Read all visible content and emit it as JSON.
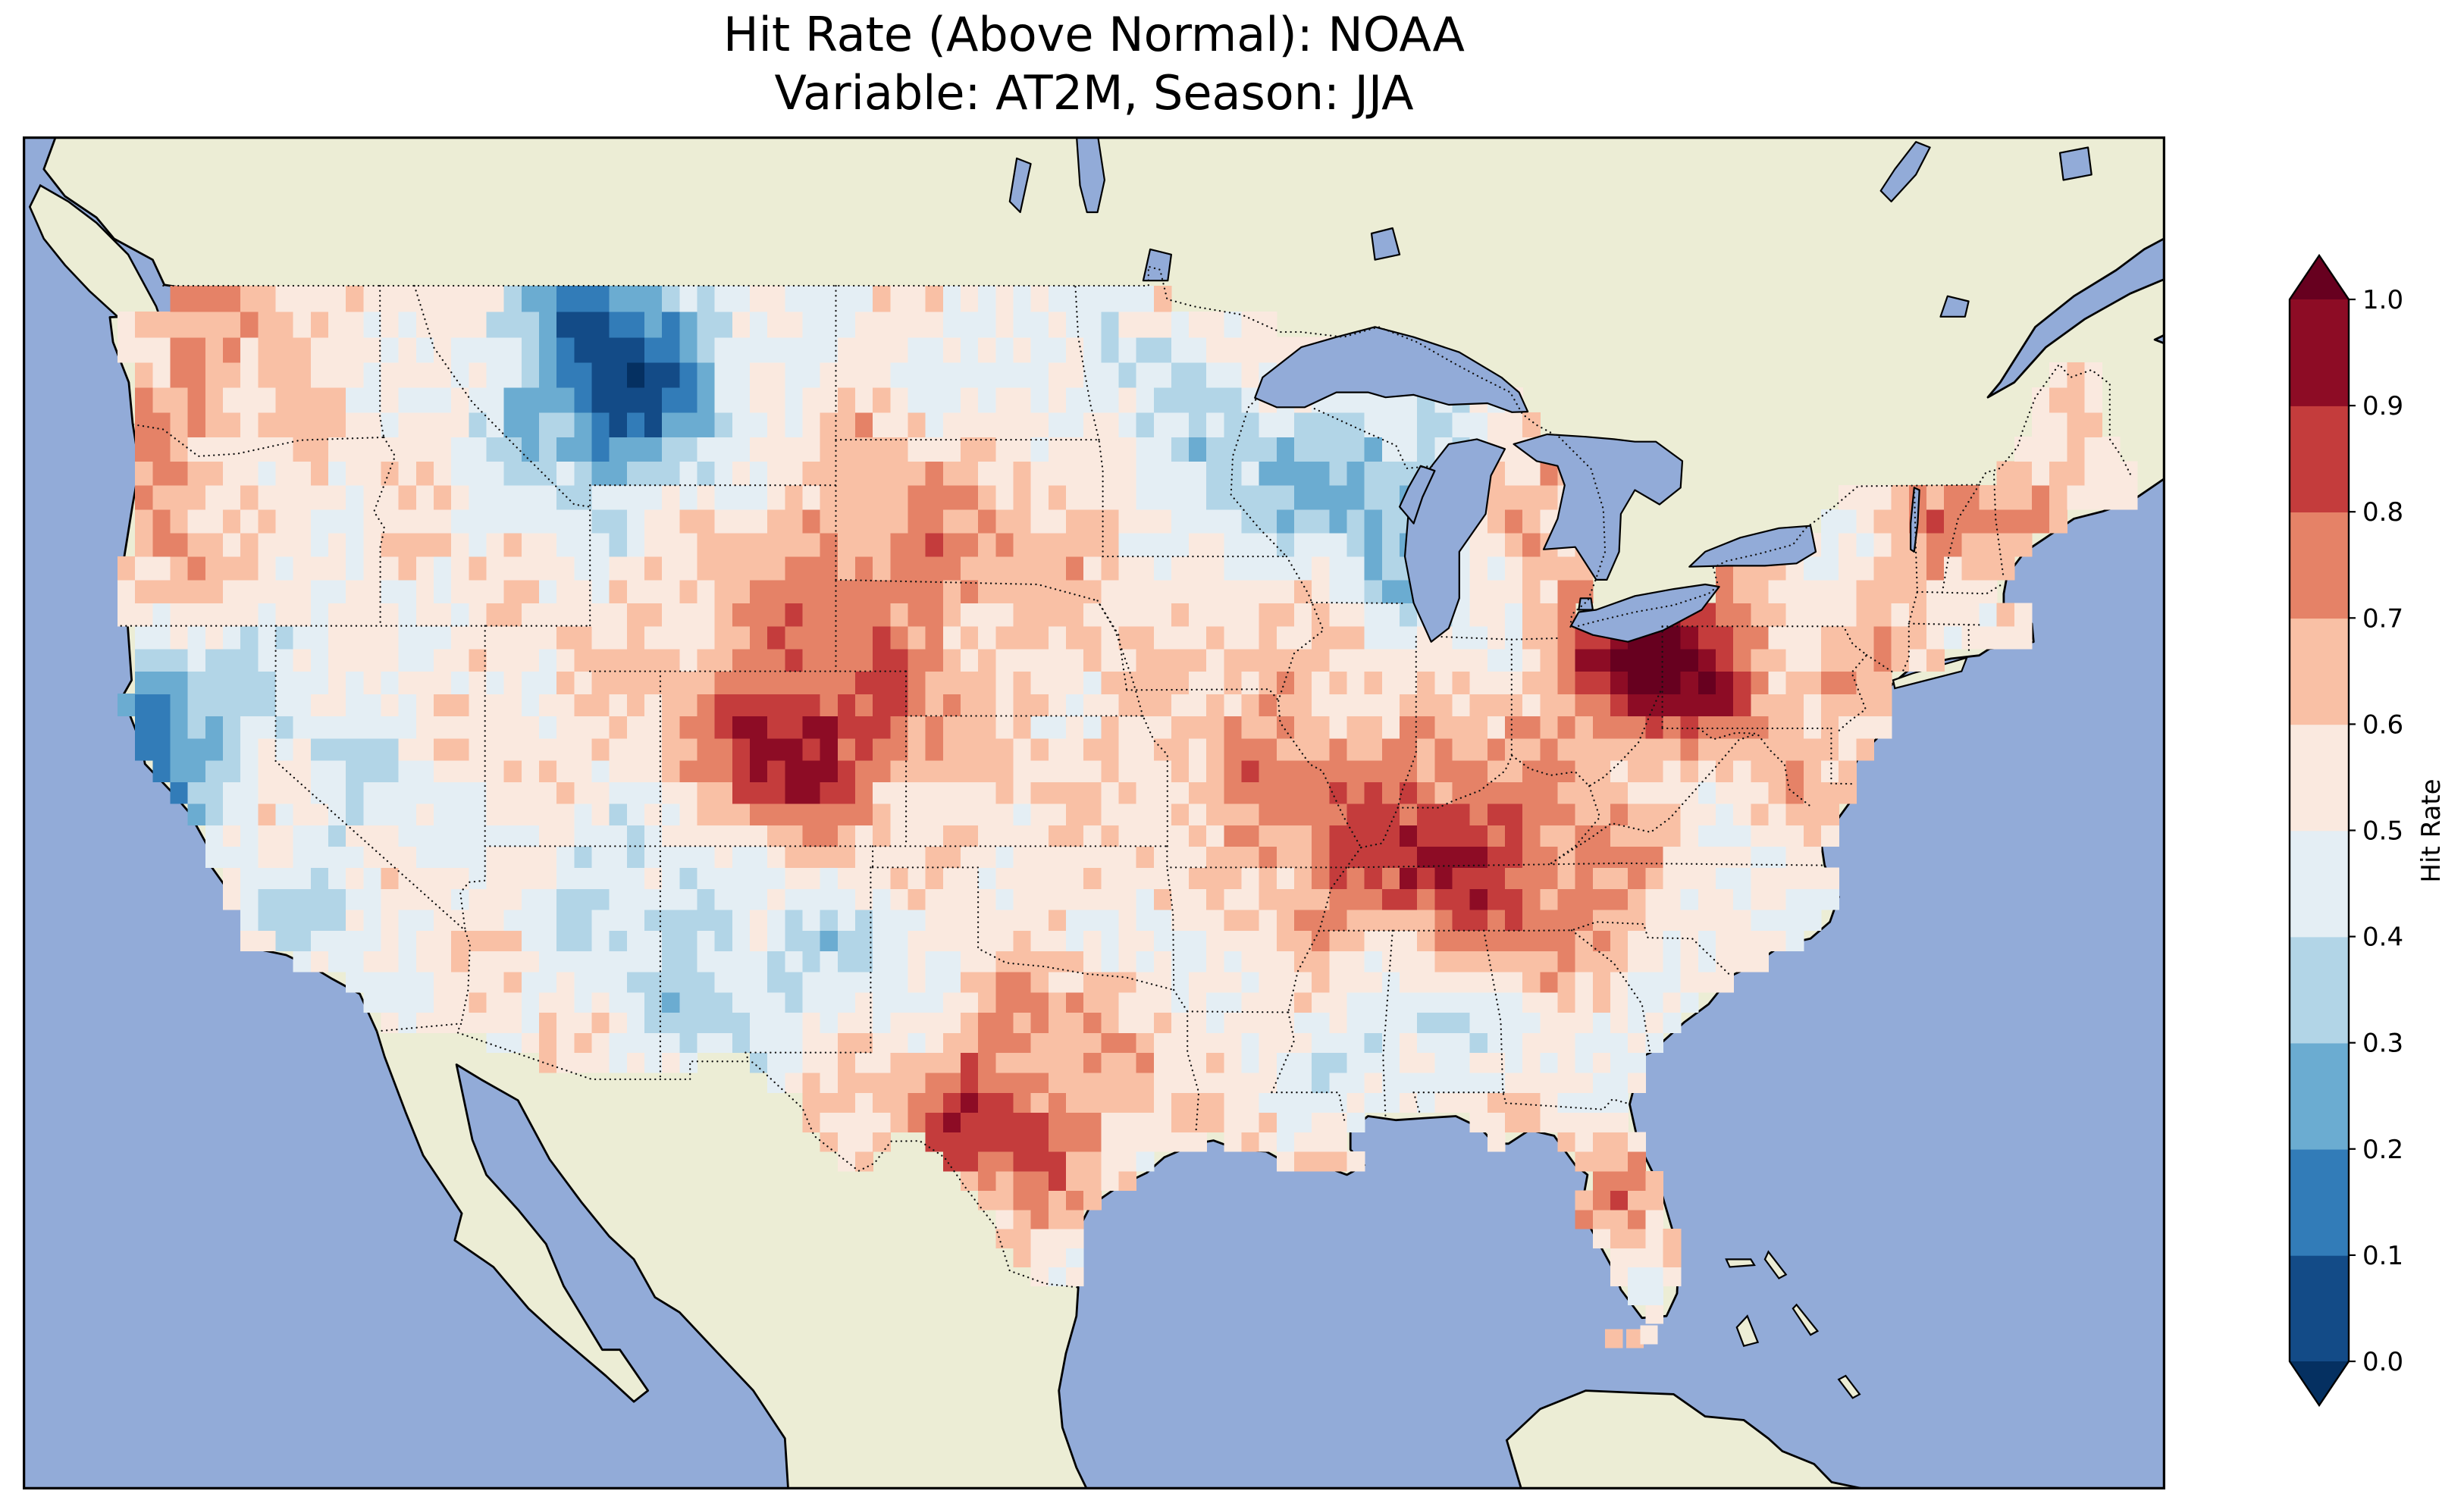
{
  "figure": {
    "title_line1": "Hit Rate (Above Normal): NOAA",
    "title_line2": "Variable: AT2M, Season: JJA"
  },
  "colorbar": {
    "label": "Hit Rate",
    "ticks": [
      "1.0",
      "0.9",
      "0.8",
      "0.7",
      "0.6",
      "0.5",
      "0.4",
      "0.3",
      "0.2",
      "0.1",
      "0.0"
    ],
    "band_colors_low_to_high": [
      "#134b87",
      "#327cb8",
      "#6bacd1",
      "#b2d5e7",
      "#e4eef4",
      "#fae9df",
      "#f9c0a5",
      "#e58267",
      "#c43c3c",
      "#8d0c25"
    ],
    "under_color": "#053061",
    "over_color": "#67001f"
  },
  "map": {
    "projection": "Mercator",
    "ocean_color": "#92abd8",
    "land_color": "#ecedd5",
    "coast_color": "#000000",
    "border_color": "#111111",
    "extent": {
      "lon_min": -127.2,
      "lon_max": -66.2,
      "lat_min": 20.5,
      "lat_max": 51.8
    }
  },
  "chart_data": {
    "type": "heatmap",
    "title": "Hit Rate (Above Normal): NOAA",
    "subtitle": "Variable: AT2M, Season: JJA",
    "source": "NOAA",
    "variable": "AT2M",
    "season": "JJA",
    "metric": "Hit Rate (Above Normal)",
    "legend_label": "Hit Rate",
    "colormap": "RdBu_r",
    "value_range": [
      0.0,
      1.0
    ],
    "bin_size": 0.1,
    "grid": {
      "lon_min": -125.0,
      "lon_max": -66.5,
      "lat_min": 24.5,
      "lat_max": 49.5,
      "cell_size_deg": 0.5
    },
    "baseline_value": 0.55,
    "noise_amplitude": 0.07,
    "blobs": [
      {
        "region": "Central Montana low",
        "lon": -110.3,
        "lat": 47.2,
        "amp": -0.42,
        "sigma": 1.9
      },
      {
        "region": "Central Montana core",
        "lon": -110.6,
        "lat": 47.3,
        "amp": -0.12,
        "sigma": 0.9
      },
      {
        "region": "Northern California coast low",
        "lon": -123.4,
        "lat": 39.9,
        "amp": -0.38,
        "sigma": 1.1
      },
      {
        "region": "San Francisco Bay coast low",
        "lon": -122.7,
        "lat": 38.2,
        "amp": -0.18,
        "sigma": 1.0
      },
      {
        "region": "SW Washington / NW Oregon coast high",
        "lon": -123.2,
        "lat": 46.2,
        "amp": 0.17,
        "sigma": 1.2
      },
      {
        "region": "Northern Washington high",
        "lon": -121.0,
        "lat": 48.9,
        "amp": 0.15,
        "sigma": 1.0
      },
      {
        "region": "SW Oregon high",
        "lon": -122.9,
        "lat": 42.9,
        "amp": 0.12,
        "sigma": 1.0
      },
      {
        "region": "NE California / NW Nevada low",
        "lon": -120.3,
        "lat": 41.3,
        "amp": -0.12,
        "sigma": 1.1
      },
      {
        "region": "Central Nevada low",
        "lon": -117.4,
        "lat": 38.6,
        "amp": -0.12,
        "sigma": 1.4
      },
      {
        "region": "Southern Sierra / S California low",
        "lon": -118.8,
        "lat": 35.3,
        "amp": -0.13,
        "sigma": 1.1
      },
      {
        "region": "Colorado Rockies core high",
        "lon": -105.3,
        "lat": 39.2,
        "amp": 0.27,
        "sigma": 1.15
      },
      {
        "region": "Colorado / High Plains high",
        "lon": -105.0,
        "lat": 40.2,
        "amp": 0.16,
        "sigma": 2.6
      },
      {
        "region": "W Nebraska / SW South Dakota high",
        "lon": -102.2,
        "lat": 43.4,
        "amp": 0.14,
        "sigma": 1.9
      },
      {
        "region": "Four Corners / NE Arizona low",
        "lon": -110.1,
        "lat": 36.4,
        "amp": -0.15,
        "sigma": 1.5
      },
      {
        "region": "SW New Mexico low",
        "lon": -107.1,
        "lat": 33.7,
        "amp": -0.2,
        "sigma": 1.6
      },
      {
        "region": "E New Mexico / TX Panhandle low",
        "lon": -102.8,
        "lat": 34.6,
        "amp": -0.16,
        "sigma": 1.4
      },
      {
        "region": "West Texas low",
        "lon": -101.9,
        "lat": 32.2,
        "amp": -0.13,
        "sigma": 0.9
      },
      {
        "region": "Central and South Texas high",
        "lon": -100.2,
        "lat": 31.0,
        "amp": 0.22,
        "sigma": 2.3
      },
      {
        "region": "South Texas core",
        "lon": -99.3,
        "lat": 29.8,
        "amp": 0.1,
        "sigma": 1.3
      },
      {
        "region": "West-central Minnesota low",
        "lon": -95.4,
        "lat": 46.7,
        "amp": -0.14,
        "sigma": 1.2
      },
      {
        "region": "SE Minnesota / W Wisconsin low",
        "lon": -92.4,
        "lat": 44.9,
        "amp": -0.18,
        "sigma": 1.4
      },
      {
        "region": "Upper Michigan low",
        "lon": -88.6,
        "lat": 45.7,
        "amp": -0.18,
        "sigma": 1.3
      },
      {
        "region": "Lake Michigan shore low",
        "lon": -87.4,
        "lat": 43.7,
        "amp": -0.22,
        "sigma": 1.5
      },
      {
        "region": "NE Iowa / NW Illinois high",
        "lon": -91.5,
        "lat": 41.8,
        "amp": 0.1,
        "sigma": 1.1
      },
      {
        "region": "Central Missouri high",
        "lon": -91.5,
        "lat": 38.5,
        "amp": 0.12,
        "sigma": 1.6
      },
      {
        "region": "W Tennessee / W Kentucky high",
        "lon": -88.4,
        "lat": 36.3,
        "amp": 0.2,
        "sigma": 2.1
      },
      {
        "region": "Kentucky-Tennessee core high",
        "lon": -86.5,
        "lat": 37.4,
        "amp": 0.14,
        "sigma": 1.2
      },
      {
        "region": "E Tennessee high",
        "lon": -84.6,
        "lat": 35.9,
        "amp": 0.1,
        "sigma": 1.5
      },
      {
        "region": "Central Mississippi low",
        "lon": -89.3,
        "lat": 32.7,
        "amp": -0.13,
        "sigma": 1.3
      },
      {
        "region": "Central Alabama low",
        "lon": -86.8,
        "lat": 32.9,
        "amp": -0.12,
        "sigma": 1.2
      },
      {
        "region": "NE Ohio / NW Pennsylvania core very high",
        "lon": -80.7,
        "lat": 41.2,
        "amp": 0.4,
        "sigma": 1.25
      },
      {
        "region": "Ohio Valley broad high",
        "lon": -80.2,
        "lat": 41.0,
        "amp": 0.15,
        "sigma": 2.4
      },
      {
        "region": "Vermont / New Hampshire high",
        "lon": -72.4,
        "lat": 44.0,
        "amp": 0.17,
        "sigma": 1.1
      },
      {
        "region": "Central Maine high",
        "lon": -69.6,
        "lat": 45.2,
        "amp": 0.1,
        "sigma": 0.9
      },
      {
        "region": "Central New York low",
        "lon": -76.2,
        "lat": 43.0,
        "amp": -0.09,
        "sigma": 1.0
      },
      {
        "region": "NYC / New Jersey high",
        "lon": -74.5,
        "lat": 40.6,
        "amp": 0.12,
        "sigma": 0.9
      },
      {
        "region": "W North Carolina high",
        "lon": -82.6,
        "lat": 35.5,
        "amp": 0.12,
        "sigma": 1.3
      },
      {
        "region": "E North Carolina coast low",
        "lon": -77.9,
        "lat": 35.4,
        "amp": -0.11,
        "sigma": 1.0
      },
      {
        "region": "Georgia / South Carolina coast low",
        "lon": -80.9,
        "lat": 32.7,
        "amp": -0.12,
        "sigma": 1.0
      },
      {
        "region": "Central Florida high",
        "lon": -81.6,
        "lat": 28.4,
        "amp": 0.14,
        "sigma": 1.1
      },
      {
        "region": "NE Lower Michigan high",
        "lon": -84.2,
        "lat": 44.7,
        "amp": 0.14,
        "sigma": 1.1
      },
      {
        "region": "Central North Dakota low",
        "lon": -99.7,
        "lat": 47.6,
        "amp": -0.09,
        "sigma": 1.3
      },
      {
        "region": "West Virginia low",
        "lon": -80.6,
        "lat": 38.7,
        "amp": -0.09,
        "sigma": 1.0
      },
      {
        "region": "SE South Dakota / SW Minnesota high",
        "lon": -97.0,
        "lat": 44.2,
        "amp": 0.09,
        "sigma": 1.2
      },
      {
        "region": "W Arkansas low",
        "lon": -93.6,
        "lat": 34.9,
        "amp": -0.1,
        "sigma": 1.2
      }
    ],
    "extra_cells": [
      {
        "lon": -81.9,
        "lat": 24.6,
        "value": 0.68
      },
      {
        "lon": -81.3,
        "lat": 24.6,
        "value": 0.66
      },
      {
        "lon": -80.9,
        "lat": 24.7,
        "value": 0.56
      }
    ]
  }
}
